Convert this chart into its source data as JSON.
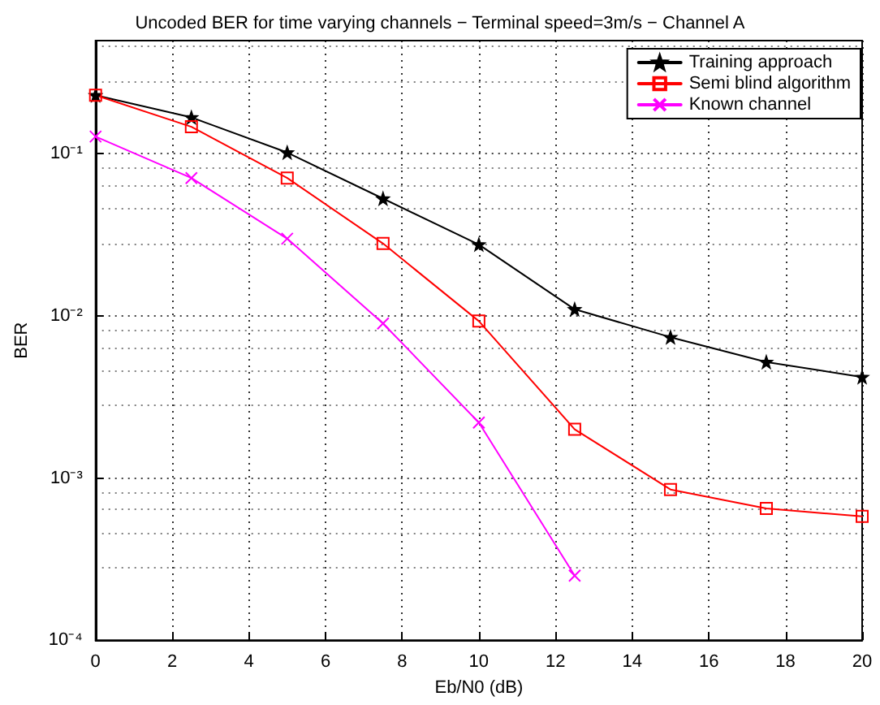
{
  "chart_data": {
    "type": "line",
    "title": "Uncoded BER for time varying channels − Terminal speed=3m/s − Channel A",
    "xlabel": "Eb/N0 (dB)",
    "ylabel": "BER",
    "x": [
      0,
      2.5,
      5,
      7.5,
      10,
      12.5,
      15,
      17.5,
      20
    ],
    "series": [
      {
        "name": "Training approach",
        "color": "#000000",
        "marker": "star",
        "values": [
          0.23,
          0.168,
          0.102,
          0.053,
          0.0276,
          0.011,
          0.0074,
          0.0052,
          0.0042
        ]
      },
      {
        "name": "Semi blind algorithm",
        "color": "#ff0000",
        "marker": "square",
        "values": [
          0.23,
          0.147,
          0.071,
          0.028,
          0.0093,
          0.002,
          0.00085,
          0.00065,
          0.00058
        ]
      },
      {
        "name": "Known channel",
        "color": "#ff00ff",
        "marker": "cross",
        "values": [
          0.128,
          0.071,
          0.03,
          0.009,
          0.0022,
          0.00025,
          null,
          null,
          null
        ]
      }
    ],
    "xlim": [
      0,
      20
    ],
    "xticks": [
      0,
      2,
      4,
      6,
      8,
      10,
      12,
      14,
      16,
      18,
      20
    ],
    "ylim": [
      0.0001,
      0.5
    ],
    "yticks": [
      {
        "value": 0.0001,
        "label": "10⁻⁴"
      },
      {
        "value": 0.001,
        "label": "10⁻³"
      },
      {
        "value": 0.01,
        "label": "10⁻²"
      },
      {
        "value": 0.1,
        "label": "10⁻¹"
      }
    ],
    "log": "y",
    "grid": true,
    "legend": "top right",
    "line_style": "solid"
  }
}
